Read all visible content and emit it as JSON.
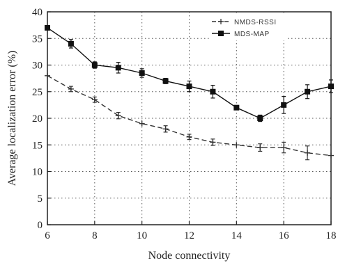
{
  "chart_data": {
    "type": "line",
    "xlabel": "Node connectivity",
    "ylabel": "Average localization error (%)",
    "xlim": [
      6,
      18
    ],
    "ylim": [
      0,
      40
    ],
    "xticks": [
      6,
      8,
      10,
      12,
      14,
      16,
      18
    ],
    "yticks": [
      0,
      5,
      10,
      15,
      20,
      25,
      30,
      35,
      40
    ],
    "grid": true,
    "legend_position": "top-right",
    "series": [
      {
        "name": "NMDS-RSSI",
        "style": "dashed",
        "marker": "cross",
        "color": "#333333",
        "x": [
          6,
          7,
          8,
          9,
          10,
          11,
          12,
          13,
          14,
          15,
          16,
          17,
          18
        ],
        "y": [
          28,
          25.5,
          23.5,
          20.5,
          19,
          18,
          16.5,
          15.5,
          15,
          14.5,
          14.5,
          13.5,
          13
        ],
        "err": [
          0,
          0.5,
          0.5,
          0.6,
          0,
          0.6,
          0.5,
          0.6,
          0,
          0.7,
          1,
          1.3,
          0
        ]
      },
      {
        "name": "MDS-MAP",
        "style": "solid",
        "marker": "square",
        "color": "#111111",
        "x": [
          6,
          7,
          8,
          9,
          10,
          11,
          12,
          13,
          14,
          15,
          16,
          17,
          18
        ],
        "y": [
          37,
          34,
          30,
          29.5,
          28.5,
          27,
          26,
          25,
          22,
          20,
          22.5,
          25,
          26
        ],
        "err": [
          0,
          0.8,
          0.6,
          1,
          0.8,
          0.5,
          1,
          1.2,
          0,
          0.6,
          1.6,
          1.3,
          1.2
        ]
      }
    ]
  }
}
